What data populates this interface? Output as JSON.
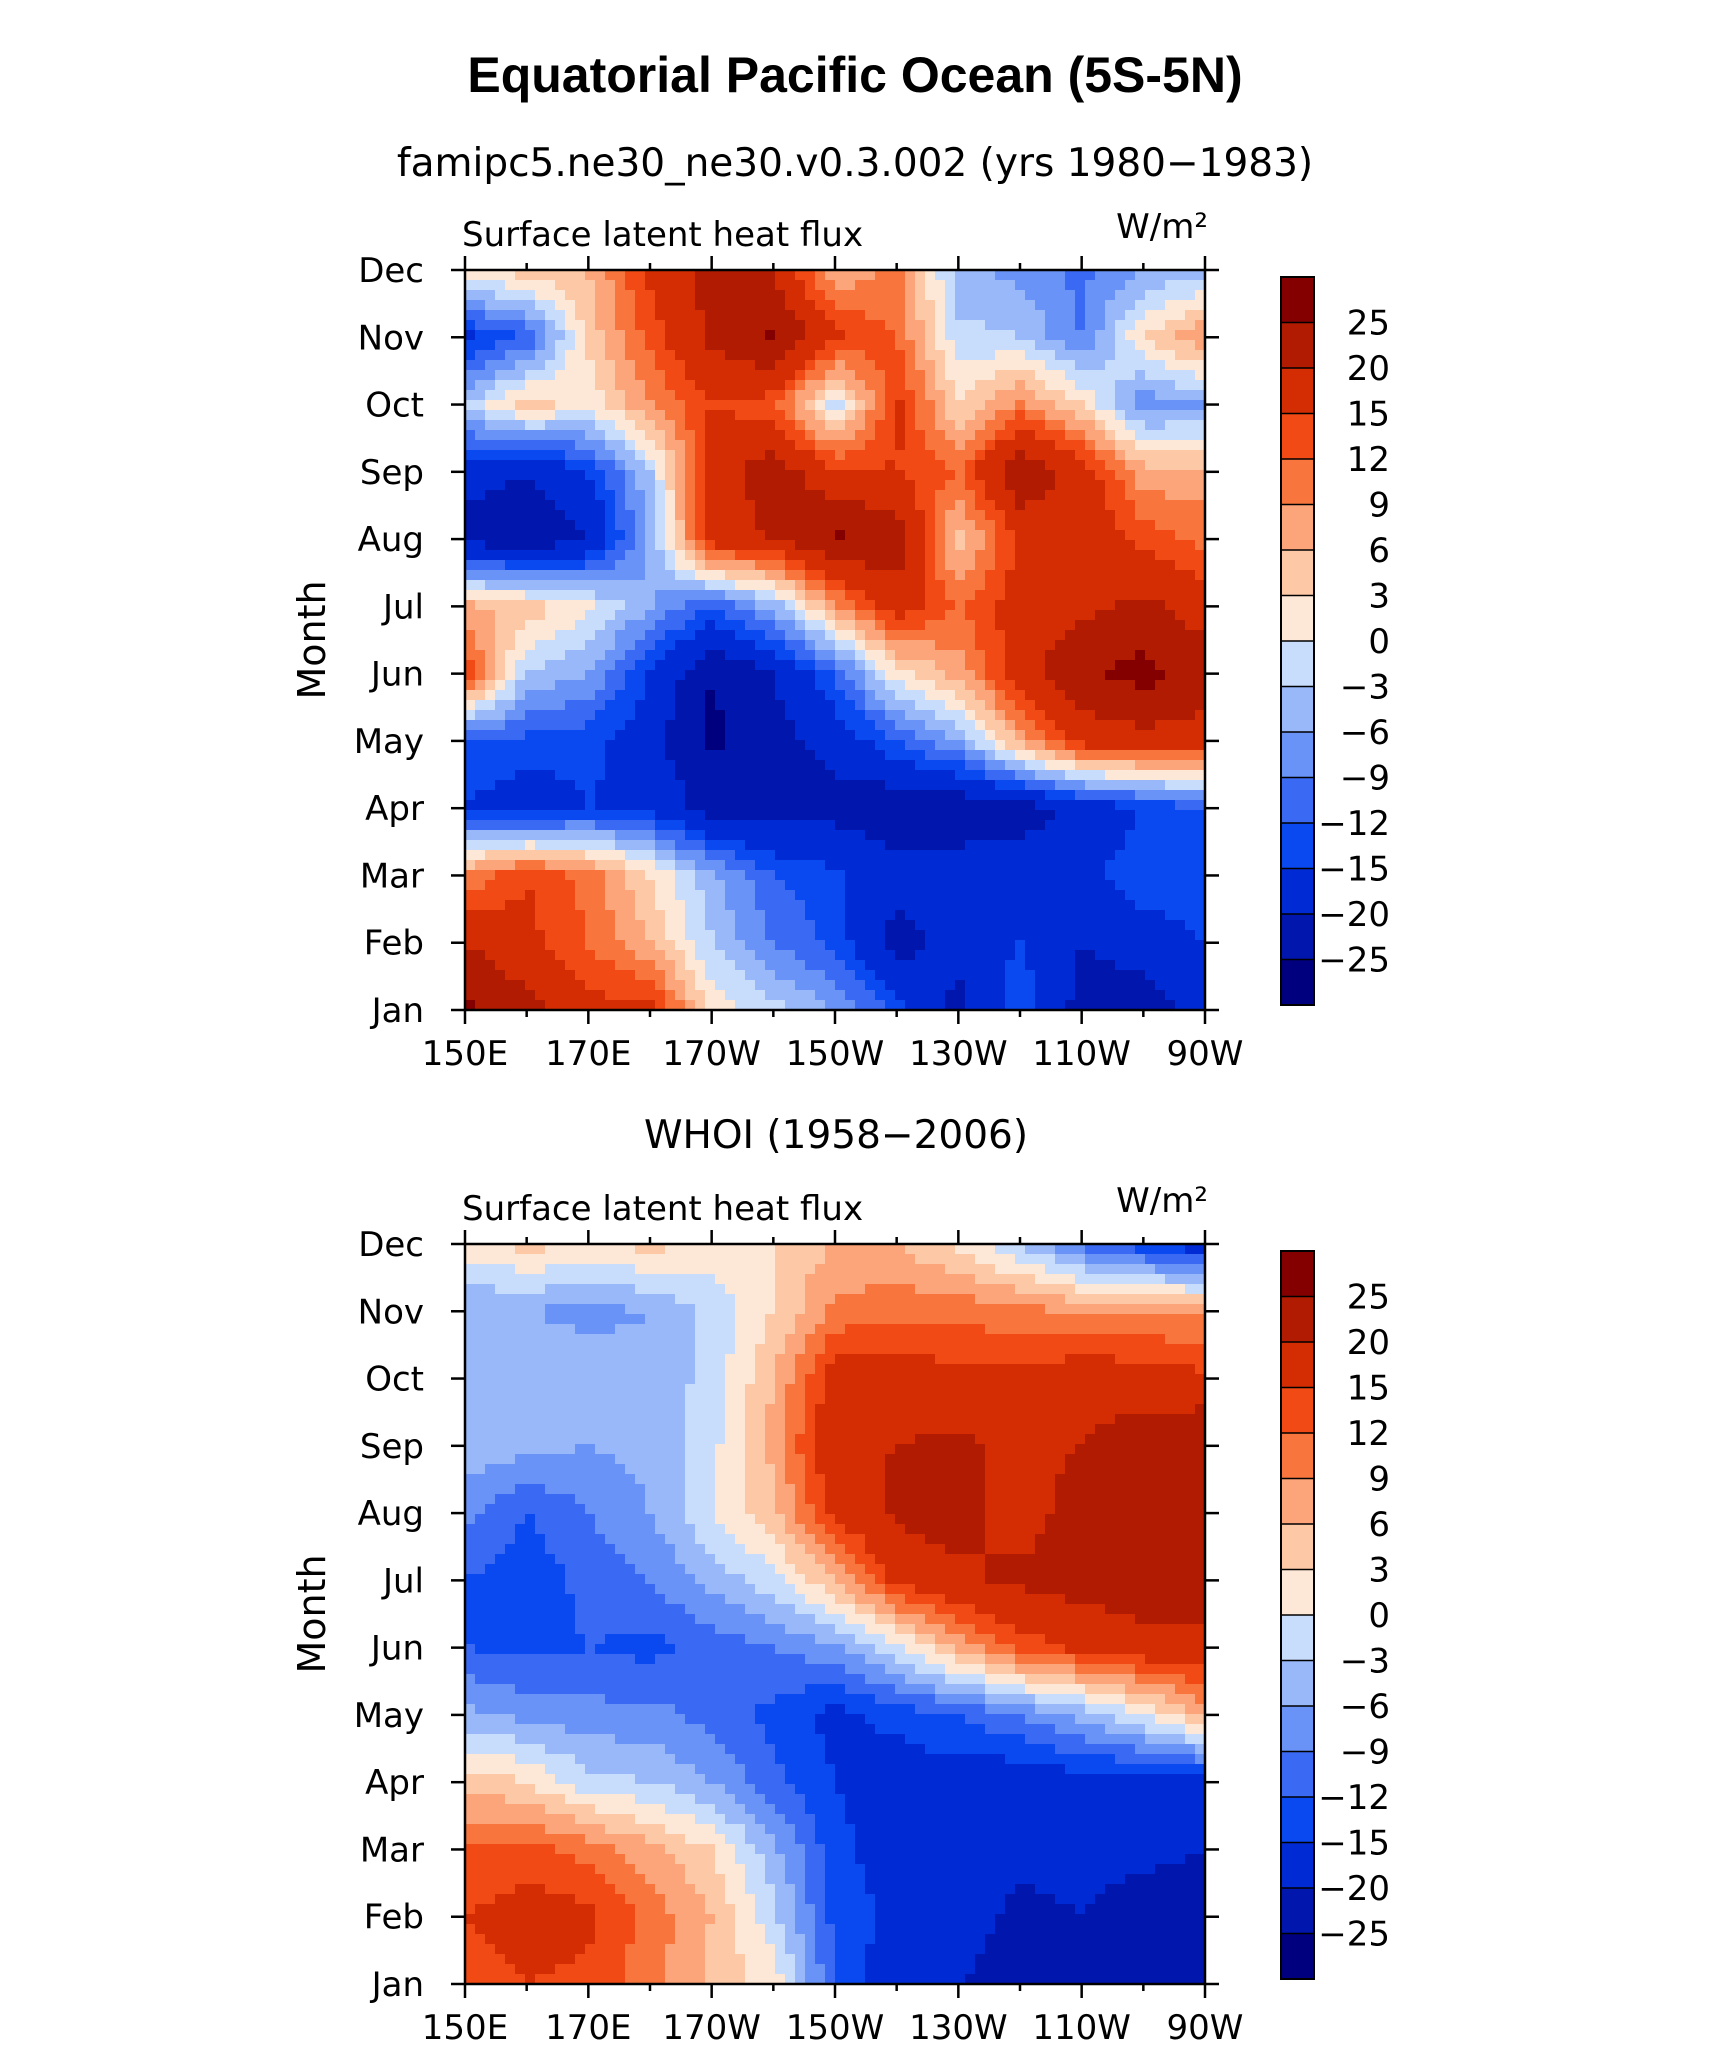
{
  "chart_data": {
    "title": "Equatorial Pacific Ocean (5S-5N)",
    "panels": [
      {
        "type": "heatmap",
        "subtitle": "famipc5.ne30_ne30.v0.3.002 (yrs 1980−1983)",
        "left_label": "Surface latent heat flux",
        "units": "W/m²",
        "ylabel": "Month",
        "x_ticks": [
          "150E",
          "170E",
          "170W",
          "150W",
          "130W",
          "110W",
          "90W"
        ],
        "y_ticks": [
          "Jan",
          "Feb",
          "Mar",
          "Apr",
          "May",
          "Jun",
          "Jul",
          "Aug",
          "Sep",
          "Oct",
          "Nov",
          "Dec"
        ],
        "xlim": [
          150,
          270
        ],
        "x_values": [
          150,
          160,
          170,
          180,
          190,
          200,
          210,
          220,
          230,
          240,
          250,
          260,
          270
        ],
        "grid": [
          [
            26,
            22,
            16,
            17,
            2,
            -2,
            -6,
            -13,
            -22,
            -12,
            -22,
            -24,
            -16
          ],
          [
            20,
            16,
            12,
            6,
            -3,
            -9,
            -13,
            -22,
            -18,
            -15,
            -20,
            -17,
            -15
          ],
          [
            9,
            15,
            11,
            3,
            -5,
            -12,
            -14,
            -18,
            -17,
            -16,
            -16,
            -13,
            -13
          ],
          [
            -15,
            -18,
            -15,
            -16,
            -22,
            -22,
            -22,
            -24,
            -24,
            -23,
            -18,
            -15,
            -12
          ],
          [
            -12,
            -13,
            -14,
            -18,
            -26,
            -22,
            -18,
            -12,
            -6,
            7,
            17,
            18,
            18
          ],
          [
            15,
            -3,
            -6,
            -15,
            -25,
            -20,
            -12,
            2,
            7,
            18,
            24,
            27,
            22
          ],
          [
            7,
            5,
            1,
            -6,
            -12,
            -5,
            8,
            18,
            12,
            17,
            19,
            21,
            18
          ],
          [
            -22,
            -24,
            -20,
            -6,
            18,
            20,
            26,
            23,
            4,
            16,
            18,
            14,
            11
          ],
          [
            -18,
            -20,
            -15,
            -3,
            17,
            23,
            16,
            15,
            12,
            24,
            18,
            7,
            7
          ],
          [
            -3,
            5,
            1,
            9,
            15,
            13,
            -2,
            16,
            3,
            10,
            3,
            -8,
            -6
          ],
          [
            -16,
            -12,
            4,
            13,
            21,
            26,
            16,
            12,
            -2,
            -3,
            -9,
            3,
            9
          ],
          [
            2,
            5,
            6,
            16,
            22,
            20,
            6,
            10,
            -5,
            -7,
            -10,
            -6,
            -4
          ]
        ]
      },
      {
        "type": "heatmap",
        "subtitle": "WHOI (1958−2006)",
        "left_label": "Surface latent heat flux",
        "units": "W/m²",
        "ylabel": "Month",
        "x_ticks": [
          "150E",
          "170E",
          "170W",
          "150W",
          "130W",
          "110W",
          "90W"
        ],
        "y_ticks": [
          "Jan",
          "Feb",
          "Mar",
          "Apr",
          "May",
          "Jun",
          "Jul",
          "Aug",
          "Sep",
          "Oct",
          "Nov",
          "Dec"
        ],
        "xlim": [
          150,
          270
        ],
        "x_values": [
          150,
          160,
          170,
          180,
          190,
          200,
          210,
          220,
          230,
          240,
          250,
          260,
          270
        ],
        "grid": [
          [
            13,
            15,
            14,
            10,
            5,
            2,
            -12,
            -18,
            -20,
            -22,
            -22,
            -22,
            -25
          ],
          [
            15,
            17,
            16,
            11,
            6,
            -2,
            -13,
            -16,
            -18,
            -21,
            -20,
            -22,
            -22
          ],
          [
            12,
            13,
            11,
            7,
            3,
            -5,
            -14,
            -17,
            -17,
            -19,
            -19,
            -19,
            -20
          ],
          [
            5,
            3,
            -2,
            -3,
            -6,
            -11,
            -15,
            -17,
            -17,
            -18,
            -17,
            -17,
            -17
          ],
          [
            -5,
            -7,
            -8,
            -8,
            -10,
            -13,
            -16,
            -14,
            -12,
            -9,
            -5,
            0,
            7
          ],
          [
            -12,
            -13,
            -12,
            -13,
            -11,
            -9,
            -7,
            -1,
            7,
            13,
            16,
            18,
            18
          ],
          [
            -12,
            -14,
            -11,
            -9,
            -5,
            -1,
            6,
            16,
            19,
            21,
            22,
            23,
            23
          ],
          [
            -8,
            -12,
            -9,
            -6,
            0,
            5,
            16,
            21,
            22,
            18,
            22,
            23,
            22
          ],
          [
            -4,
            -5,
            -6,
            -5,
            -1,
            7,
            19,
            20,
            21,
            19,
            20,
            23,
            25
          ],
          [
            -3,
            -3,
            -4,
            -5,
            -2,
            6,
            17,
            18,
            16,
            16,
            18,
            17,
            16
          ],
          [
            -6,
            -6,
            -7,
            -6,
            -2,
            3,
            10,
            11,
            11,
            10,
            9,
            9,
            8
          ],
          [
            2,
            4,
            3,
            4,
            2,
            3,
            6,
            6,
            2,
            -3,
            -10,
            -14,
            -18
          ]
        ]
      }
    ],
    "colorbar": {
      "levels": [
        "25",
        "20",
        "15",
        "12",
        "9",
        "6",
        "3",
        "0",
        "−3",
        "−6",
        "−9",
        "−12",
        "−15",
        "−20",
        "−25"
      ],
      "thresholds": [
        -25,
        -20,
        -15,
        -12,
        -9,
        -6,
        -3,
        0,
        3,
        6,
        9,
        12,
        15,
        20,
        25
      ],
      "colors": [
        "#00007f",
        "#0016ad",
        "#002bd4",
        "#0a48f0",
        "#3a6af4",
        "#6993f7",
        "#98b8f9",
        "#c8dcfc",
        "#fde8d8",
        "#fcc8a6",
        "#fca47a",
        "#f8753e",
        "#f14a14",
        "#d42d03",
        "#b01b02",
        "#840000"
      ]
    }
  }
}
